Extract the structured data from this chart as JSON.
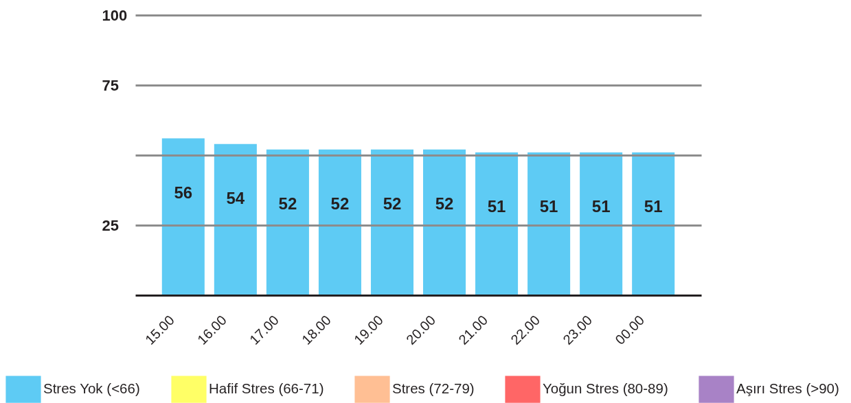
{
  "chart_data": {
    "type": "bar",
    "categories": [
      "15.00",
      "16.00",
      "17.00",
      "18.00",
      "19.00",
      "20.00",
      "21.00",
      "22.00",
      "23.00",
      "00.00"
    ],
    "series": [
      {
        "name": "Stres Yok (<66)",
        "color": "#5ecbf4",
        "values": [
          56,
          54,
          52,
          52,
          52,
          52,
          51,
          51,
          51,
          51
        ]
      },
      {
        "name": "Hafif Stres (66-71)",
        "color": "#ffff66",
        "values": [
          null,
          null,
          null,
          null,
          null,
          null,
          null,
          null,
          null,
          null
        ]
      },
      {
        "name": "Stres (72-79)",
        "color": "#ffbf94",
        "values": [
          null,
          null,
          null,
          null,
          null,
          null,
          null,
          null,
          null,
          null
        ]
      },
      {
        "name": "Yoğun Stres (80-89)",
        "color": "#ff6666",
        "values": [
          null,
          null,
          null,
          null,
          null,
          null,
          null,
          null,
          null,
          null
        ]
      },
      {
        "name": "Aşırı Stres (>90)",
        "color": "#a882c6",
        "values": [
          null,
          null,
          null,
          null,
          null,
          null,
          null,
          null,
          null,
          null
        ]
      }
    ],
    "stacked": true,
    "ylim": [
      0,
      100
    ],
    "yticks": [
      25,
      {
        "value": 50,
        "label": null
      },
      75,
      100
    ],
    "grid": "y",
    "legend": "bottom",
    "data_labels": true
  }
}
